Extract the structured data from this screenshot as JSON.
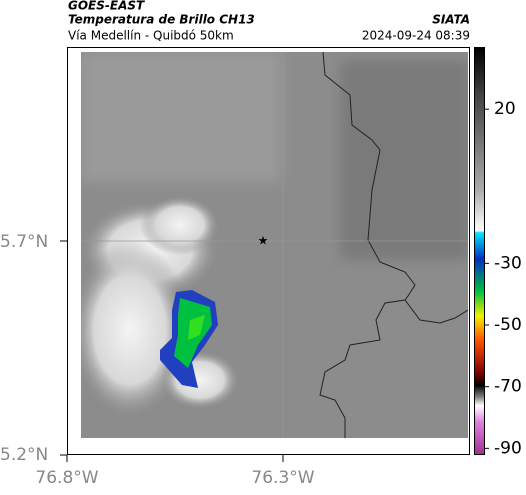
{
  "header": {
    "source": "GOES-EAST",
    "title": "Temperatura de Brillo CH13",
    "subtitle": "Vía Medellín - Quibdó 50km",
    "org": "SIATA",
    "datetime": "2024-09-24 08:39"
  },
  "map": {
    "lat_labels": [
      "5.7°N",
      "5.2°N"
    ],
    "lon_labels": [
      "76.8°W",
      "76.3°W"
    ]
  },
  "colorbar": {
    "lim": [
      40,
      -92
    ],
    "ticks": [
      20,
      -30,
      -50,
      -70,
      -90
    ]
  }
}
